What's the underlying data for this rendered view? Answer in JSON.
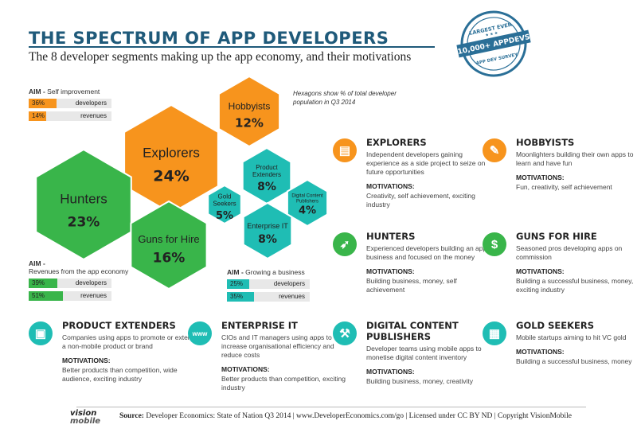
{
  "header": {
    "title": "THE SPECTRUM OF APP DEVELOPERS",
    "subtitle": "The 8 developer segments making up the app economy, and their motivations"
  },
  "badge": {
    "top": "LARGEST EVER",
    "middle": "10,000+ APPDEVS",
    "bottom": "APP DEV SURVEY"
  },
  "note": "Hexagons show % of total developer population in Q3 2014",
  "hexagons": [
    {
      "name": "Explorers",
      "percent": "24%",
      "color": "#f7941d"
    },
    {
      "name": "Hobbyists",
      "percent": "12%",
      "color": "#f7941d"
    },
    {
      "name": "Hunters",
      "percent": "23%",
      "color": "#39b54a"
    },
    {
      "name": "Guns for Hire",
      "percent": "16%",
      "color": "#39b54a"
    },
    {
      "name_lines": [
        "Product",
        "Extenders"
      ],
      "percent": "8%",
      "color": "#1fbdb4"
    },
    {
      "name_lines": [
        "Gold",
        "Seekers"
      ],
      "percent": "5%",
      "color": "#1fbdb4"
    },
    {
      "name_lines": [
        "Digital Content",
        "Publishers"
      ],
      "percent": "4%",
      "color": "#1fbdb4"
    },
    {
      "name": "Enterprise IT",
      "percent": "8%",
      "color": "#1fbdb4"
    }
  ],
  "aims": [
    {
      "label": "AIM -",
      "value": "Self improvement",
      "color": "#f7941d",
      "bars": [
        {
          "pct": "36%",
          "fraction": 0.36,
          "label": "developers"
        },
        {
          "pct": "14%",
          "fraction": 0.14,
          "label": "revenues"
        }
      ]
    },
    {
      "label": "AIM -",
      "value": "Revenues from the app economy",
      "color": "#39b54a",
      "bars": [
        {
          "pct": "39%",
          "fraction": 0.39,
          "label": "developers"
        },
        {
          "pct": "51%",
          "fraction": 0.51,
          "label": "revenues"
        }
      ]
    },
    {
      "label": "AIM -",
      "value": "Growing a business",
      "color": "#1fbdb4",
      "bars": [
        {
          "pct": "25%",
          "fraction": 0.25,
          "label": "developers"
        },
        {
          "pct": "35%",
          "fraction": 0.35,
          "label": "revenues"
        }
      ]
    }
  ],
  "motivations_label": "MOTIVATIONS:",
  "segments": [
    {
      "title": "EXPLORERS",
      "desc": "Independent developers gaining experience as a side project to seize on future opportunities",
      "motivations": "Creativity, self achievement, exciting industry",
      "color": "#f7941d",
      "icon": "explorer-icon"
    },
    {
      "title": "HOBBYISTS",
      "desc": "Moonlighters building their own apps to learn and have fun",
      "motivations": "Fun, creativity, self achievement",
      "color": "#f7941d",
      "icon": "hobbyist-icon"
    },
    {
      "title": "HUNTERS",
      "desc": "Experienced developers building an app business and focused on the money",
      "motivations": "Building business, money, self achievement",
      "color": "#39b54a",
      "icon": "bow-arrow-icon"
    },
    {
      "title": "GUNS FOR HIRE",
      "desc": "Seasoned pros developing apps on commission",
      "motivations": "Building a successful business, money, exciting industry",
      "color": "#39b54a",
      "icon": "money-bag-icon"
    },
    {
      "title": "PRODUCT EXTENDERS",
      "desc": "Companies using apps to promote or extend a non-mobile product or brand",
      "motivations": "Better products than competition, wide audience, exciting industry",
      "color": "#1fbdb4",
      "icon": "product-icon"
    },
    {
      "title": "ENTERPRISE IT",
      "desc": "CIOs and IT managers using apps to increase organisational efficiency and reduce costs",
      "motivations": "Better products than competition, exciting industry",
      "color": "#1fbdb4",
      "icon": "www-icon"
    },
    {
      "title": "DIGITAL CONTENT PUBLISHERS",
      "title_lines": [
        "DIGITAL CONTENT",
        "PUBLISHERS"
      ],
      "desc": "Developer teams using mobile apps to monetise digital content inventory",
      "motivations": "Building business, money, creativity",
      "color": "#1fbdb4",
      "icon": "pickaxe-icon"
    },
    {
      "title": "GOLD SEEKERS",
      "desc": "Mobile startups aiming to hit VC gold",
      "motivations": "Building a successful business, money",
      "color": "#1fbdb4",
      "icon": "gold-icon"
    }
  ],
  "footer": {
    "logo_top": "vision",
    "logo_bottom": "mobile",
    "source_label": "Source:",
    "source": "Developer Economics: State of Nation Q3 2014 | www.DeveloperEconomics.com/go   |   Licensed under CC BY ND | Copyright VisionMobile"
  }
}
